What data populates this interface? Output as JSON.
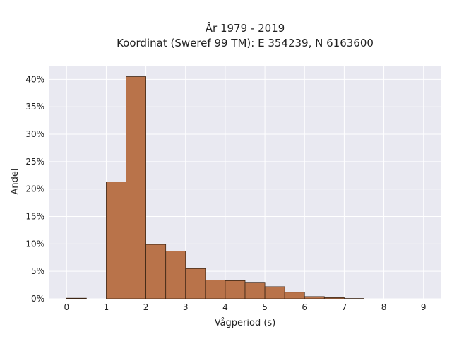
{
  "chart_data": {
    "type": "bar",
    "title_line1": "År 1979 - 2019",
    "title_line2": "Koordinat (Sweref 99 TM): E 354239, N 6163600",
    "xlabel": "Vågperiod (s)",
    "ylabel": "Andel",
    "xlim": [
      -0.45,
      9.45
    ],
    "ylim": [
      0,
      0.425
    ],
    "x_ticks": [
      0,
      1,
      2,
      3,
      4,
      5,
      6,
      7,
      8,
      9
    ],
    "y_ticks": [
      0,
      0.05,
      0.1,
      0.15,
      0.2,
      0.25,
      0.3,
      0.35,
      0.4
    ],
    "y_tick_labels": [
      "0%",
      "5%",
      "10%",
      "15%",
      "20%",
      "25%",
      "30%",
      "35%",
      "40%"
    ],
    "bin_width": 0.5,
    "bins": [
      {
        "start": 0.0,
        "value": 0.001
      },
      {
        "start": 0.5,
        "value": 0.0
      },
      {
        "start": 1.0,
        "value": 0.213
      },
      {
        "start": 1.5,
        "value": 0.405
      },
      {
        "start": 2.0,
        "value": 0.099
      },
      {
        "start": 2.5,
        "value": 0.087
      },
      {
        "start": 3.0,
        "value": 0.055
      },
      {
        "start": 3.5,
        "value": 0.034
      },
      {
        "start": 4.0,
        "value": 0.033
      },
      {
        "start": 4.5,
        "value": 0.03
      },
      {
        "start": 5.0,
        "value": 0.022
      },
      {
        "start": 5.5,
        "value": 0.012
      },
      {
        "start": 6.0,
        "value": 0.004
      },
      {
        "start": 6.5,
        "value": 0.002
      },
      {
        "start": 7.0,
        "value": 0.0005
      }
    ],
    "grid": true,
    "colors": {
      "bar_fill": "#b9734a",
      "bar_edge": "#3d2615",
      "plot_bg": "#e9e9f1",
      "grid": "#ffffff"
    }
  }
}
